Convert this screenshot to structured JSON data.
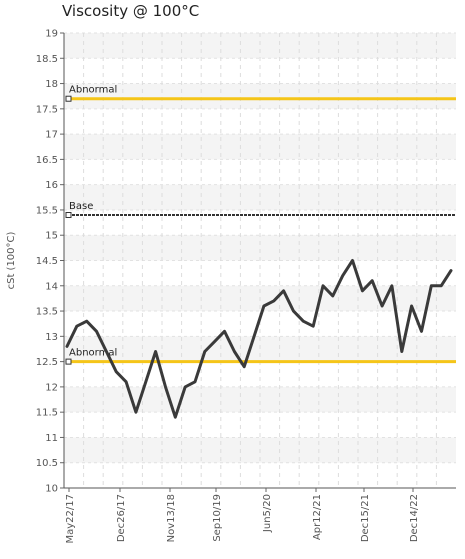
{
  "chart_data": {
    "type": "line",
    "title": "Viscosity @ 100°C",
    "ylabel": "cSt (100°C)",
    "xlabel": "",
    "ylim": [
      10,
      19
    ],
    "y_ticks": [
      "10",
      "10.5",
      "11",
      "11.5",
      "12",
      "12.5",
      "13",
      "13.5",
      "14",
      "14.5",
      "15",
      "15.5",
      "16",
      "16.5",
      "17",
      "17.5",
      "18",
      "18.5",
      "19"
    ],
    "x_ticks": [
      "May22/17",
      "Dec26/17",
      "Nov13/18",
      "Sep10/19",
      "Jun5/20",
      "Apr12/21",
      "Dec15/21",
      "Dec14/22"
    ],
    "grid": true,
    "reference_lines": [
      {
        "label": "Abnormal",
        "value": 17.7,
        "color": "#f5c518"
      },
      {
        "label": "Base",
        "value": 15.4,
        "color": "#333333"
      },
      {
        "label": "Abnormal",
        "value": 12.5,
        "color": "#f5c518"
      }
    ],
    "series": [
      {
        "color": "#3a3a3a",
        "values": [
          12.8,
          13.2,
          13.3,
          13.1,
          12.7,
          12.3,
          12.1,
          11.5,
          12.1,
          12.7,
          12.0,
          11.4,
          12.0,
          12.1,
          12.7,
          12.9,
          13.1,
          12.7,
          12.4,
          13.0,
          13.6,
          13.7,
          13.9,
          13.5,
          13.3,
          13.2,
          14.0,
          13.8,
          14.2,
          14.5,
          13.9,
          14.1,
          13.6,
          14.0,
          12.7,
          13.6,
          13.1,
          14.0,
          14.0,
          14.3
        ]
      }
    ]
  }
}
